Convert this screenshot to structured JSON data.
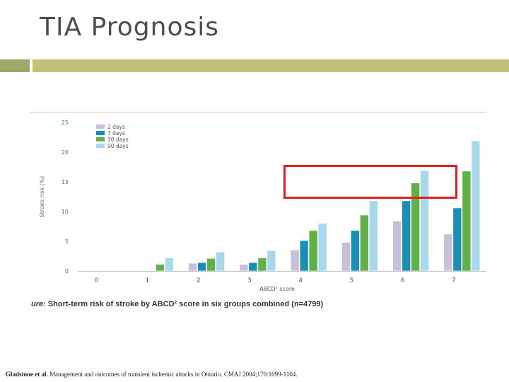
{
  "slide": {
    "title": "TIA Prognosis"
  },
  "caption": {
    "prefix": "ure:",
    "text": " Short-term risk of stroke by ABCD² score in six groups combined (n=4799)"
  },
  "citation": {
    "authors": "Gladstone et al.",
    "text": " Management and outcomes of transient ischemic attacks in Ontario. CMAJ 2004;170:1099-1104."
  },
  "colors": {
    "title_bar_left": "#9fa86a",
    "title_bar_right": "#c4c277",
    "highlight": "#e02020"
  },
  "chart_data": {
    "type": "bar",
    "xlabel": "ABCD² score",
    "ylabel": "Stroke risk (%)",
    "categories": [
      "0",
      "1",
      "2",
      "3",
      "4",
      "5",
      "6",
      "7"
    ],
    "ylim": [
      0,
      25
    ],
    "yticks": [
      0,
      5,
      10,
      15,
      20,
      25
    ],
    "legend_position": "top-left",
    "grid": false,
    "series": [
      {
        "name": "2 days",
        "color": "#c9bedb",
        "values": [
          0,
          0,
          1.3,
          1.1,
          3.5,
          4.8,
          8.4,
          6.2
        ]
      },
      {
        "name": "7 days",
        "color": "#1b8fb3",
        "values": [
          0,
          0,
          1.4,
          1.4,
          5.1,
          6.8,
          11.8,
          10.6
        ]
      },
      {
        "name": "30 days",
        "color": "#62b04a",
        "values": [
          0,
          1.1,
          2.1,
          2.2,
          6.8,
          9.4,
          14.8,
          16.8
        ]
      },
      {
        "name": "90 days",
        "color": "#a9d8ea",
        "values": [
          0,
          2.2,
          3.2,
          3.4,
          8.0,
          11.8,
          16.9,
          21.9
        ]
      }
    ]
  }
}
